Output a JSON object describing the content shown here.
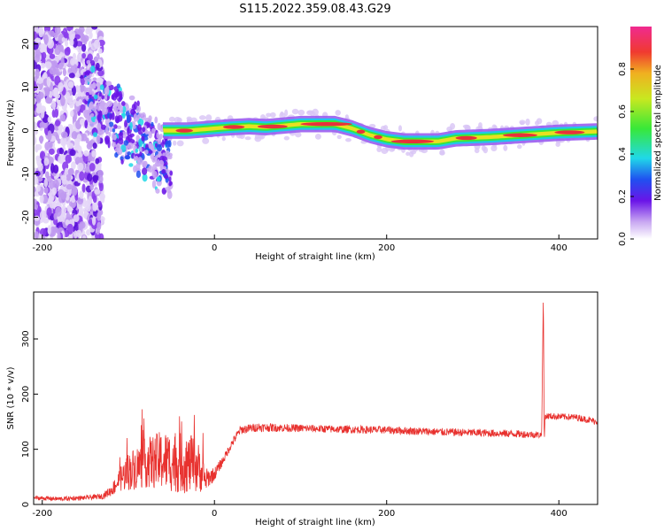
{
  "title": "S115.2022.359.08.43.G29",
  "colors": {
    "snr_line": "#e8312e",
    "axis": "#000000",
    "spectrum_core": "#e8313a",
    "spectrum_mid": "#38e838",
    "spectrum_edge": "#6a14e8"
  },
  "chart_data": [
    {
      "id": "spectrogram",
      "type": "heatmap",
      "title": "S115.2022.359.08.43.G29",
      "xlabel": "Height of straight line (km)",
      "ylabel": "Frequency (Hz)",
      "xlim": [
        -210,
        445
      ],
      "ylim": [
        -25,
        24
      ],
      "xticks": [
        -200,
        0,
        200,
        400
      ],
      "yticks": [
        -20,
        -10,
        0,
        10,
        20
      ],
      "ridge": {
        "x": [
          -140,
          -120,
          -100,
          -80,
          -60,
          -50,
          -30,
          0,
          20,
          40,
          60,
          100,
          140,
          160,
          180,
          200,
          220,
          260,
          280,
          320,
          360,
          400,
          445
        ],
        "frequency": [
          8,
          4,
          1,
          0,
          0,
          0,
          0,
          0.5,
          0.8,
          1,
          0.8,
          1.5,
          1.5,
          0.5,
          -1,
          -2,
          -2.5,
          -2.5,
          -1.8,
          -1.5,
          -1,
          -0.5,
          -0.2
        ]
      },
      "noise_region_x": [
        -210,
        -130
      ],
      "colorbar": {
        "label": "Normalized spectral amplitude",
        "range": [
          0,
          1
        ],
        "ticks": [
          "0.0",
          "0.2",
          "0.4",
          "0.6",
          "0.8"
        ]
      }
    },
    {
      "id": "snr",
      "type": "line",
      "xlabel": "Height of straight line (km)",
      "ylabel": "SNR (10 * v/v)",
      "xlim": [
        -210,
        445
      ],
      "ylim": [
        0,
        385
      ],
      "xticks": [
        -200,
        0,
        200,
        400
      ],
      "yticks": [
        0,
        100,
        200,
        300
      ],
      "series": [
        {
          "name": "SNR",
          "x": [
            -210,
            -180,
            -150,
            -130,
            -120,
            -110,
            -100,
            -80,
            -60,
            -40,
            -20,
            -10,
            0,
            10,
            20,
            30,
            50,
            100,
            150,
            200,
            250,
            300,
            350,
            380,
            382,
            383,
            384,
            390,
            420,
            445
          ],
          "value": [
            12,
            10,
            12,
            15,
            25,
            45,
            60,
            75,
            80,
            75,
            70,
            45,
            55,
            80,
            110,
            135,
            140,
            138,
            136,
            135,
            132,
            130,
            128,
            126,
            385,
            110,
            160,
            160,
            158,
            150
          ],
          "noise": [
            4,
            4,
            4,
            5,
            10,
            22,
            35,
            45,
            55,
            55,
            50,
            20,
            12,
            8,
            8,
            8,
            8,
            7,
            7,
            7,
            7,
            7,
            7,
            6,
            0,
            0,
            6,
            6,
            6,
            6
          ]
        }
      ]
    }
  ]
}
